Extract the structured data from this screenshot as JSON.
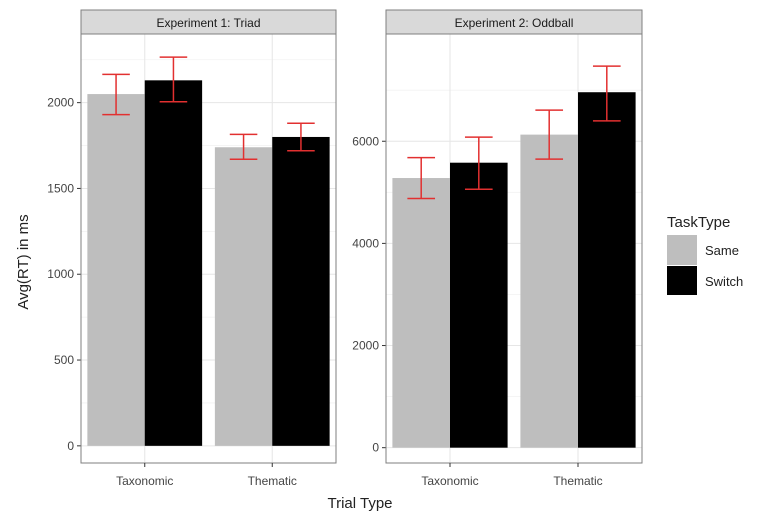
{
  "chart_data": {
    "type": "bar",
    "xlabel": "Trial Type",
    "ylabel": "Avg(RT) in ms",
    "legend": {
      "title": "TaskType",
      "position": "right",
      "entries": [
        {
          "label": "Same",
          "color": "#bebebe"
        },
        {
          "label": "Switch",
          "color": "#000000"
        }
      ]
    },
    "error_bar_color": "#e23030",
    "grid": true,
    "panels": [
      {
        "title": "Experiment 1: Triad",
        "categories": [
          "Taxonomic",
          "Thematic"
        ],
        "ylim": [
          -100,
          2400
        ],
        "yticks": [
          0,
          500,
          1000,
          1500,
          2000
        ],
        "ytick_labels": [
          "0",
          "500",
          "1000",
          "1500",
          "2000"
        ],
        "series": [
          {
            "name": "Same",
            "values": [
              2050,
              1740
            ],
            "err_low": [
              1930,
              1670
            ],
            "err_high": [
              2165,
              1815
            ]
          },
          {
            "name": "Switch",
            "values": [
              2130,
              1800
            ],
            "err_low": [
              2005,
              1720
            ],
            "err_high": [
              2265,
              1880
            ]
          }
        ]
      },
      {
        "title": "Experiment 2: Oddball",
        "categories": [
          "Taxonomic",
          "Thematic"
        ],
        "ylim": [
          -300,
          8100
        ],
        "yticks": [
          0,
          2000,
          4000,
          6000
        ],
        "ytick_labels": [
          "0",
          "2000",
          "4000",
          "6000"
        ],
        "series": [
          {
            "name": "Same",
            "values": [
              5280,
              6130
            ],
            "err_low": [
              4880,
              5650
            ],
            "err_high": [
              5680,
              6610
            ]
          },
          {
            "name": "Switch",
            "values": [
              5580,
              6960
            ],
            "err_low": [
              5060,
              6400
            ],
            "err_high": [
              6080,
              7470
            ]
          }
        ]
      }
    ]
  }
}
